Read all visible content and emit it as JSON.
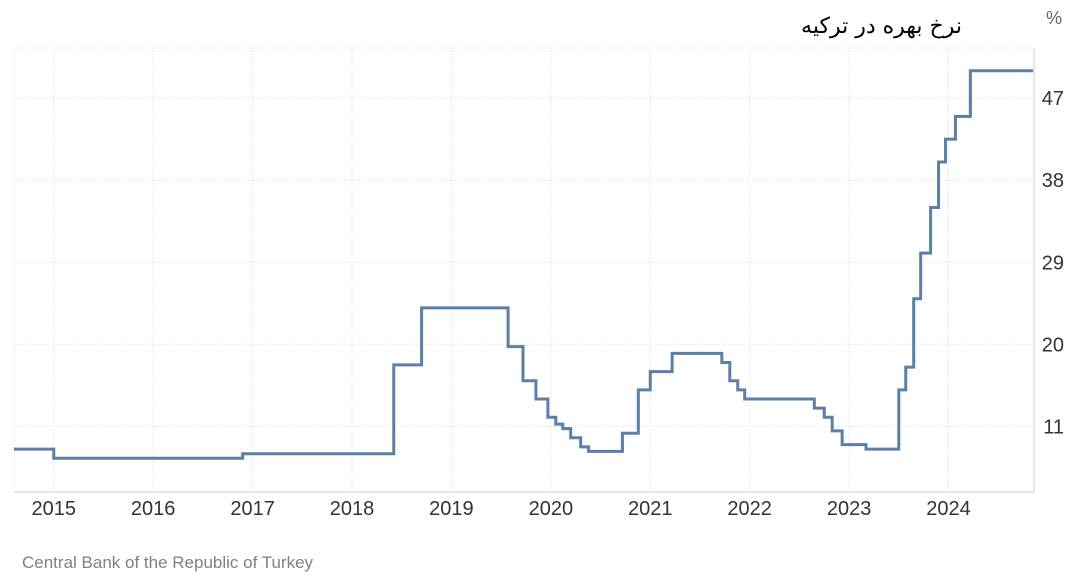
{
  "chart_data": {
    "type": "line",
    "title": "نرخ بهره در ترکیه",
    "unit": "%",
    "source": "Central Bank of the Republic of Turkey",
    "xlabel": "",
    "ylabel": "",
    "x_ticks": [
      "2015",
      "2016",
      "2017",
      "2018",
      "2019",
      "2020",
      "2021",
      "2022",
      "2023",
      "2024"
    ],
    "y_ticks": [
      11,
      20,
      29,
      38,
      47
    ],
    "ylim": [
      3.8,
      52.5
    ],
    "xlim": [
      2014.6,
      2024.86
    ],
    "grid": true,
    "series": [
      {
        "color": "#5b7fa6",
        "step": true,
        "x": [
          2014.6,
          2015.0,
          2015.1,
          2016.9,
          2018.42,
          2018.43,
          2018.7,
          2019.57,
          2019.72,
          2019.85,
          2019.97,
          2020.05,
          2020.12,
          2020.2,
          2020.3,
          2020.38,
          2020.72,
          2020.88,
          2021.0,
          2021.22,
          2021.72,
          2021.8,
          2021.88,
          2021.95,
          2022.65,
          2022.75,
          2022.83,
          2022.93,
          2023.17,
          2023.5,
          2023.57,
          2023.65,
          2023.72,
          2023.82,
          2023.9,
          2023.97,
          2024.07,
          2024.22,
          2024.65
        ],
        "y": [
          8.5,
          7.5,
          7.5,
          8.0,
          17.75,
          17.75,
          24,
          19.75,
          16,
          14,
          12,
          11.25,
          10.75,
          9.75,
          8.75,
          8.25,
          10.25,
          15,
          17,
          19,
          18,
          16,
          15,
          14,
          13,
          12,
          10.5,
          9,
          8.5,
          15,
          17.5,
          25,
          30,
          35,
          40,
          42.5,
          45,
          50,
          50
        ]
      }
    ]
  }
}
